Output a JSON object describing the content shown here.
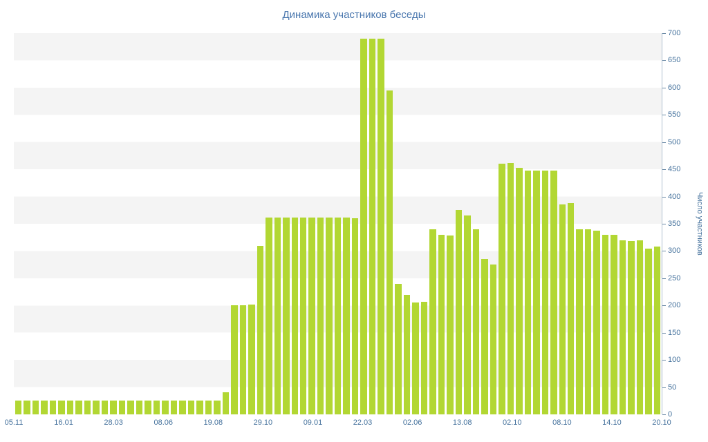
{
  "title": "Динамика участников беседы",
  "colors": {
    "bar": "#b2d733",
    "stripe": "#f4f4f4",
    "background": "#ffffff",
    "title_text": "#4a77ae",
    "axis_text": "#44719c",
    "axis_line": "#aebfce"
  },
  "chart_data": {
    "type": "bar",
    "title": "Динамика участников беседы",
    "xlabel": "",
    "ylabel": "Число участников",
    "ylim": [
      0,
      700
    ],
    "ytick_step": 50,
    "yticks": [
      0,
      50,
      100,
      150,
      200,
      250,
      300,
      350,
      400,
      450,
      500,
      550,
      600,
      650,
      700
    ],
    "xtick_labels": [
      "05.11",
      "16.01",
      "28.03",
      "08.06",
      "19.08",
      "29.10",
      "09.01",
      "22.03",
      "02.06",
      "13.08",
      "02.10",
      "08.10",
      "14.10",
      "20.10"
    ],
    "legend": "none",
    "grid": "horizontal striped bands every 50 units",
    "bar_color": "#b2d733",
    "values": [
      25,
      25,
      25,
      25,
      25,
      25,
      25,
      25,
      25,
      25,
      25,
      25,
      25,
      25,
      25,
      25,
      25,
      25,
      25,
      25,
      25,
      25,
      25,
      25,
      40,
      200,
      200,
      202,
      310,
      362,
      362,
      362,
      362,
      362,
      362,
      362,
      362,
      362,
      362,
      360,
      690,
      690,
      690,
      595,
      240,
      220,
      205,
      207,
      340,
      330,
      328,
      375,
      365,
      340,
      285,
      275,
      460,
      462,
      453,
      448,
      448,
      448,
      448,
      385,
      388,
      340,
      340,
      337,
      330,
      330,
      320,
      318,
      320,
      305,
      308
    ]
  }
}
